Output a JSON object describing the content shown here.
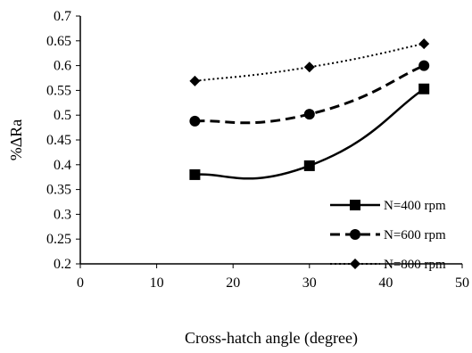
{
  "chart_data": {
    "type": "line",
    "xlabel": "Cross-hatch angle (degree)",
    "ylabel": "%ΔRa",
    "xlim": [
      0,
      50
    ],
    "ylim": [
      0.2,
      0.7
    ],
    "x_ticks": [
      "0",
      "10",
      "20",
      "30",
      "40",
      "50"
    ],
    "y_ticks": [
      "0.2",
      "0.25",
      "0.3",
      "0.35",
      "0.4",
      "0.45",
      "0.5",
      "0.55",
      "0.6",
      "0.65",
      "0.7"
    ],
    "grid": false,
    "legend_position": "bottom-right",
    "series": [
      {
        "name": "N=400 rpm",
        "x": [
          15,
          30,
          45
        ],
        "y": [
          0.38,
          0.398,
          0.553
        ],
        "marker": "square",
        "line": "solid",
        "smooth": true,
        "color": "#000000"
      },
      {
        "name": "N=600 rpm",
        "x": [
          15,
          30,
          45
        ],
        "y": [
          0.488,
          0.502,
          0.6
        ],
        "marker": "circle",
        "line": "dashed",
        "smooth": true,
        "color": "#000000"
      },
      {
        "name": "N=800 rpm",
        "x": [
          15,
          30,
          45
        ],
        "y": [
          0.569,
          0.597,
          0.644
        ],
        "marker": "diamond",
        "line": "dotted",
        "smooth": true,
        "color": "#000000"
      }
    ]
  }
}
